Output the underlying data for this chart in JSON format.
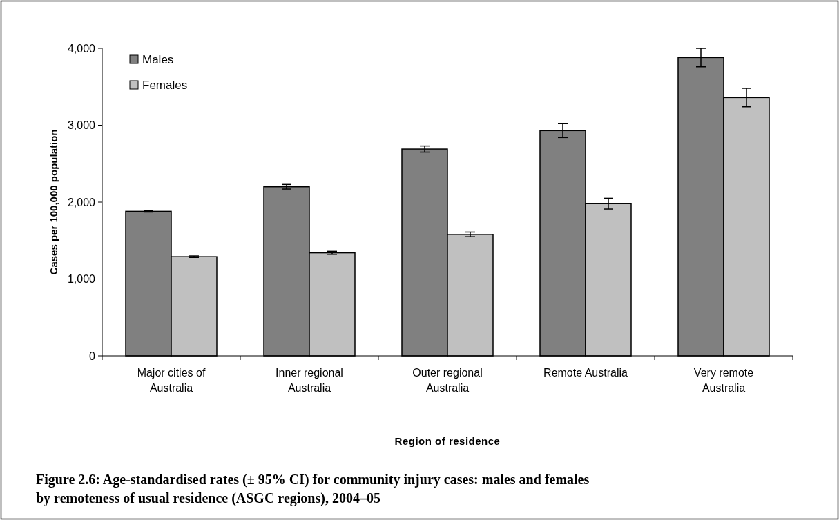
{
  "chart_data": {
    "type": "bar",
    "title": "Figure 2.6: Age-standardised rates (± 95% CI) for community injury cases: males and females by remoteness of usual residence (ASGC regions), 2004–05",
    "xlabel": "Region of residence",
    "ylabel": "Cases per 100,000 population",
    "categories": [
      "Major cities of Australia",
      "Inner regional Australia",
      "Outer regional Australia",
      "Remote Australia",
      "Very remote Australia"
    ],
    "series": [
      {
        "name": "Males",
        "color": "#808080",
        "values": [
          1880,
          2200,
          2690,
          2930,
          3880
        ],
        "errors": [
          10,
          30,
          40,
          90,
          120
        ]
      },
      {
        "name": "Females",
        "color": "#c0c0c0",
        "values": [
          1290,
          1340,
          1580,
          1980,
          3360
        ],
        "errors": [
          10,
          20,
          30,
          70,
          120
        ]
      }
    ],
    "ylim": [
      0,
      4000
    ],
    "yticks": [
      {
        "value": 0,
        "label": "0"
      },
      {
        "value": 1000,
        "label": "1,000"
      },
      {
        "value": 2000,
        "label": "2,000"
      },
      {
        "value": 3000,
        "label": "3,000"
      },
      {
        "value": 4000,
        "label": "4,000"
      }
    ],
    "legend": "top left"
  }
}
